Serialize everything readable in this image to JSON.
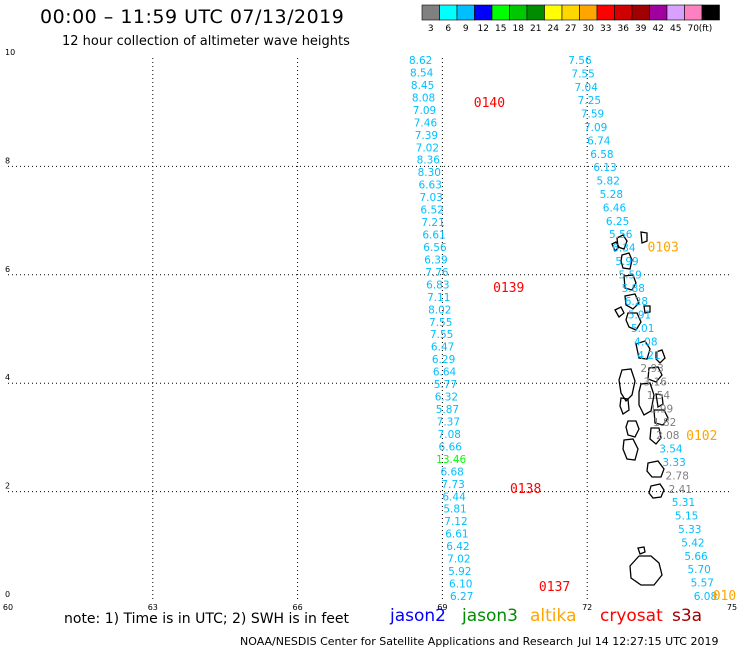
{
  "header": {
    "title": "00:00 – 11:59 UTC 07/13/2019",
    "subtitle": "12 hour collection of altimeter wave heights"
  },
  "legend": {
    "unit": "(ft)",
    "bins": [
      {
        "label": "3",
        "color": "#808080"
      },
      {
        "label": "6",
        "color": "#00ffff"
      },
      {
        "label": "9",
        "color": "#00bfff"
      },
      {
        "label": "12",
        "color": "#0000ff"
      },
      {
        "label": "15",
        "color": "#00ff00"
      },
      {
        "label": "18",
        "color": "#00c800"
      },
      {
        "label": "21",
        "color": "#008c00"
      },
      {
        "label": "24",
        "color": "#ffff00"
      },
      {
        "label": "27",
        "color": "#ffd700"
      },
      {
        "label": "30",
        "color": "#ffa500"
      },
      {
        "label": "33",
        "color": "#ff0000"
      },
      {
        "label": "36",
        "color": "#d00000"
      },
      {
        "label": "39",
        "color": "#a00000"
      },
      {
        "label": "42",
        "color": "#a000a0"
      },
      {
        "label": "45",
        "color": "#d8a0ff"
      },
      {
        "label": "70",
        "color": "#ff80c0"
      },
      {
        "label": "",
        "color": "#000000"
      }
    ]
  },
  "map": {
    "lon_ticks": [
      "60",
      "63",
      "66",
      "69",
      "72",
      "75"
    ],
    "lat_ticks": [
      "0",
      "2",
      "4",
      "6",
      "8",
      "10"
    ],
    "lon_range": [
      60,
      75
    ],
    "lat_range": [
      0,
      10
    ]
  },
  "tracks": [
    {
      "lon_start": 68.55,
      "lon_end": 69.4,
      "values": [
        "8.62",
        "8.54",
        "8.45",
        "8.08",
        "7.09",
        "7.46",
        "7.39",
        "7.02",
        "8.36",
        "8.30",
        "6.63",
        "7.03",
        "6.52",
        "7.21",
        "6.61",
        "6.56",
        "6.39",
        "7.76",
        "6.83",
        "7.11",
        "8.02",
        "7.55",
        "7.55",
        "6.47",
        "6.29",
        "6.64",
        "5.77",
        "6.32",
        "5.87",
        "7.37",
        "7.08",
        "6.66",
        "13.46",
        "6.68",
        "7.73",
        "6.44",
        "5.81",
        "7.12",
        "6.61",
        "6.42",
        "7.02",
        "5.92",
        "6.10",
        "6.27"
      ],
      "colors": [
        "#00bfff",
        "#00bfff",
        "#00bfff",
        "#00bfff",
        "#00bfff",
        "#00bfff",
        "#00bfff",
        "#00bfff",
        "#00bfff",
        "#00bfff",
        "#00bfff",
        "#00bfff",
        "#00bfff",
        "#00bfff",
        "#00bfff",
        "#00bfff",
        "#00bfff",
        "#00bfff",
        "#00bfff",
        "#00bfff",
        "#00bfff",
        "#00bfff",
        "#00bfff",
        "#00bfff",
        "#00bfff",
        "#00bfff",
        "#00bfff",
        "#00bfff",
        "#00bfff",
        "#00bfff",
        "#00bfff",
        "#00bfff",
        "#00ff00",
        "#00bfff",
        "#00bfff",
        "#00bfff",
        "#00bfff",
        "#00bfff",
        "#00bfff",
        "#00bfff",
        "#00bfff",
        "#00bfff",
        "#00bfff",
        "#00bfff"
      ]
    },
    {
      "lon_start": 71.85,
      "lon_end": 74.45,
      "values": [
        "7.56",
        "7.55",
        "7.04",
        "7.25",
        "7.59",
        "7.09",
        "6.74",
        "6.58",
        "6.13",
        "5.82",
        "5.28",
        "6.46",
        "6.25",
        "5.56",
        "6.34",
        "5.99",
        "5.59",
        "5.88",
        "6.28",
        "5.91",
        "5.01",
        "4.08",
        "4.21",
        "2.93",
        "3.16",
        "1.54",
        "1.99",
        "1.82",
        "2.08",
        "3.54",
        "3.33",
        "2.78",
        "2.41",
        "5.31",
        "5.15",
        "5.33",
        "5.42",
        "5.66",
        "5.70",
        "5.57",
        "6.08"
      ],
      "colors": [
        "#00bfff",
        "#00bfff",
        "#00bfff",
        "#00bfff",
        "#00bfff",
        "#00bfff",
        "#00bfff",
        "#00bfff",
        "#00bfff",
        "#00bfff",
        "#00bfff",
        "#00bfff",
        "#00bfff",
        "#00bfff",
        "#00bfff",
        "#00bfff",
        "#00bfff",
        "#00bfff",
        "#00bfff",
        "#00bfff",
        "#00bfff",
        "#00bfff",
        "#00bfff",
        "#808080",
        "#808080",
        "#808080",
        "#808080",
        "#808080",
        "#808080",
        "#00bfff",
        "#00bfff",
        "#808080",
        "#808080",
        "#00bfff",
        "#00bfff",
        "#00bfff",
        "#00bfff",
        "#00bfff",
        "#00bfff",
        "#00bfff",
        "#00bfff"
      ]
    }
  ],
  "time_labels": [
    {
      "text": "0140",
      "lon": 69.65,
      "lat": 9.1,
      "color": "#ff0000"
    },
    {
      "text": "0139",
      "lon": 70.05,
      "lat": 5.68,
      "color": "#ff0000"
    },
    {
      "text": "0138",
      "lon": 70.4,
      "lat": 1.97,
      "color": "#ff0000"
    },
    {
      "text": "0137",
      "lon": 71.0,
      "lat": 0.17,
      "color": "#ff0000"
    },
    {
      "text": "0103",
      "lon": 73.25,
      "lat": 6.43,
      "color": "#ffa500"
    },
    {
      "text": "0102",
      "lon": 74.05,
      "lat": 2.95,
      "color": "#ffa500"
    },
    {
      "text": "010",
      "lon": 74.6,
      "lat": 0.0,
      "color": "#ffa500"
    }
  ],
  "footer": {
    "note": "note:  1) Time is in UTC; 2) SWH is in feet",
    "satellites": [
      {
        "name": "jason2",
        "color": "#0000ff"
      },
      {
        "name": "jason3",
        "color": "#008c00"
      },
      {
        "name": "altika",
        "color": "#ffa500"
      },
      {
        "name": "cryosat",
        "color": "#ff0000"
      },
      {
        "name": "s3a",
        "color": "#a00000"
      }
    ],
    "credit": "NOAA/NESDIS Center for Satellite Applications and Research",
    "timestamp": "Jul 14 12:27:15 UTC 2019"
  }
}
